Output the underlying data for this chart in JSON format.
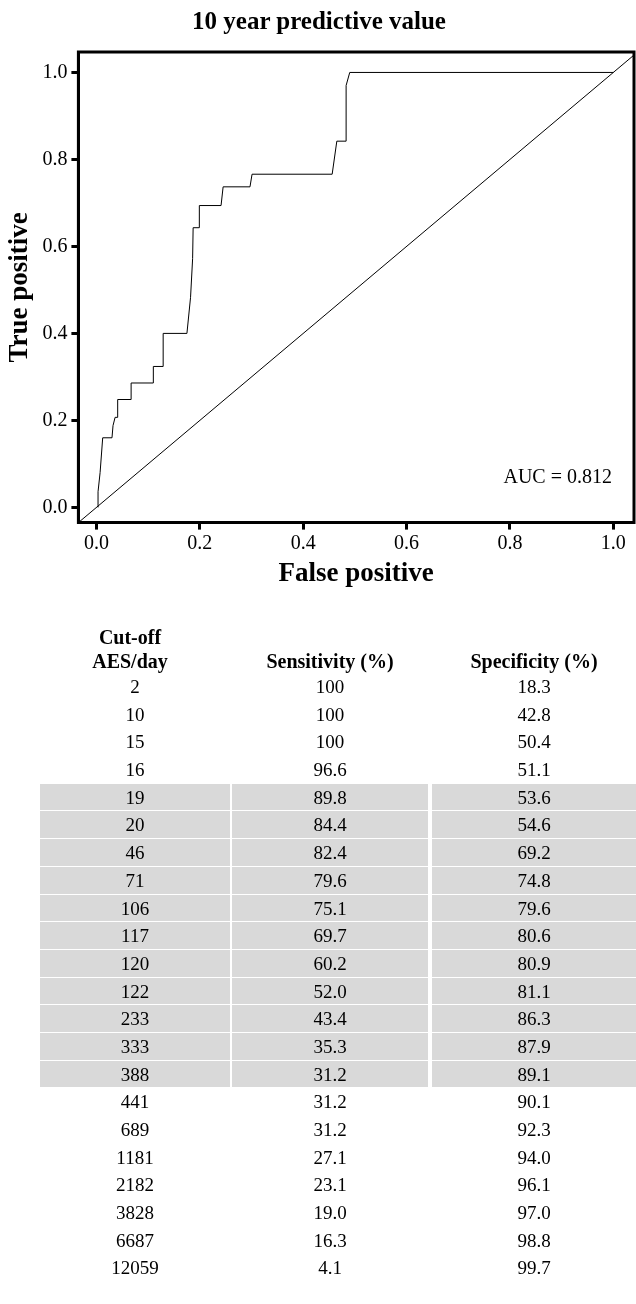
{
  "chart_data": [
    {
      "type": "line",
      "title": "10 year predictive value",
      "xlabel": "False positive",
      "ylabel": "True positive",
      "xlim": [
        -0.035,
        1.04
      ],
      "ylim": [
        -0.035,
        1.047
      ],
      "xticks": [
        {
          "value": 0,
          "label": "0.0"
        },
        {
          "value": 0.2,
          "label": "0.2"
        },
        {
          "value": 0.4,
          "label": "0.4"
        },
        {
          "value": 0.6,
          "label": "0.6"
        },
        {
          "value": 0.8,
          "label": "0.8"
        },
        {
          "value": 1,
          "label": "1.0"
        }
      ],
      "yticks": [
        {
          "value": 0,
          "label": "0.0"
        },
        {
          "value": 0.2,
          "label": "0.2"
        },
        {
          "value": 0.4,
          "label": "0.4"
        },
        {
          "value": 0.6,
          "label": "0.6"
        },
        {
          "value": 0.8,
          "label": "0.8"
        },
        {
          "value": 1,
          "label": "1.0"
        }
      ],
      "series": [
        {
          "type": "line",
          "color": "#000000",
          "x": [
            0.003,
            0.003,
            0.007,
            0.012,
            0.03,
            0.032,
            0.036,
            0.041,
            0.041,
            0.067,
            0.067,
            0.11,
            0.11,
            0.129,
            0.129,
            0.175,
            0.182,
            0.186,
            0.187,
            0.199,
            0.199,
            0.241,
            0.245,
            0.297,
            0.301,
            0.456,
            0.465,
            0.483,
            0.483,
            0.49,
            1.0
          ],
          "values": [
            0,
            0.036,
            0.08,
            0.16,
            0.16,
            0.188,
            0.207,
            0.207,
            0.248,
            0.248,
            0.286,
            0.286,
            0.324,
            0.324,
            0.4,
            0.4,
            0.483,
            0.572,
            0.643,
            0.643,
            0.694,
            0.694,
            0.737,
            0.737,
            0.766,
            0.766,
            0.842,
            0.842,
            0.97,
            1.0,
            1.0
          ]
        },
        {
          "type": "line",
          "color": "#000000",
          "x": [
            -0.035,
            1.04
          ],
          "values": [
            -0.035,
            1.04
          ]
        }
      ],
      "annotations": [
        "AUC = 0.812"
      ]
    },
    {
      "type": "other",
      "annotations": [
        "Cut-off AES/day",
        "Sensitivity (%)",
        "Specificity (%)",
        "2",
        "100",
        "18.3",
        "10",
        "100",
        "42.8",
        "15",
        "100",
        "50.4",
        "16",
        "96.6",
        "51.1",
        "19",
        "89.8",
        "53.6",
        "20",
        "84.4",
        "54.6",
        "46",
        "82.4",
        "69.2",
        "71",
        "79.6",
        "74.8",
        "106",
        "75.1",
        "79.6",
        "117",
        "69.7",
        "80.6",
        "120",
        "60.2",
        "80.9",
        "122",
        "52.0",
        "81.1",
        "233",
        "43.4",
        "86.3",
        "333",
        "35.3",
        "87.9",
        "388",
        "31.2",
        "89.1",
        "441",
        "31.2",
        "90.1",
        "689",
        "31.2",
        "92.3",
        "1181",
        "27.1",
        "94.0",
        "2182",
        "23.1",
        "96.1",
        "3828",
        "19.0",
        "97.0",
        "6687",
        "16.3",
        "98.8",
        "12059",
        "4.1",
        "99.7"
      ]
    }
  ]
}
